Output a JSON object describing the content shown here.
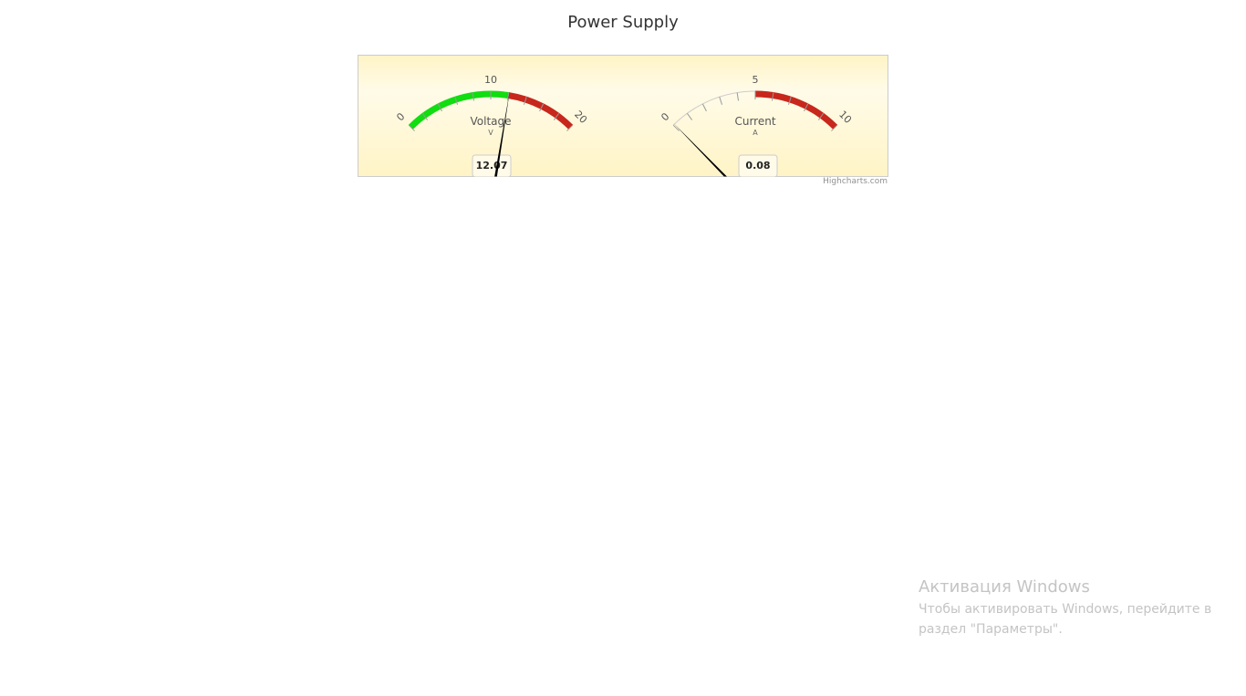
{
  "page": {
    "title": "Power Supply"
  },
  "chart_data": [
    {
      "type": "gauge",
      "title": "Voltage",
      "unit": "V",
      "min": 0,
      "max": 20,
      "major_ticks": [
        0,
        10,
        20
      ],
      "minor_tick_interval": 2,
      "value": 12.07,
      "value_label": "12.07",
      "bands": [
        {
          "from": 0,
          "to": 12,
          "color": "#11dd11"
        },
        {
          "from": 12,
          "to": 20,
          "color": "#c8271c"
        }
      ]
    },
    {
      "type": "gauge",
      "title": "Current",
      "unit": "A",
      "min": 0,
      "max": 10,
      "major_ticks": [
        0,
        5,
        10
      ],
      "minor_tick_interval": 1,
      "value": 0.08,
      "value_label": "0.08",
      "bands": [
        {
          "from": 5,
          "to": 10,
          "color": "#c8271c"
        }
      ]
    }
  ],
  "credits": "Highcharts.com",
  "colors": {
    "plot_background_top": "#fff4c6",
    "plot_background_bottom": "#fffbe8",
    "plot_border": "#cccccc",
    "needle": "#000000",
    "base_arc": "#cccccc"
  },
  "activation": {
    "title": "Активация Windows",
    "line1": "Чтобы активировать Windows, перейдите в",
    "line2": "раздел \"Параметры\"."
  }
}
